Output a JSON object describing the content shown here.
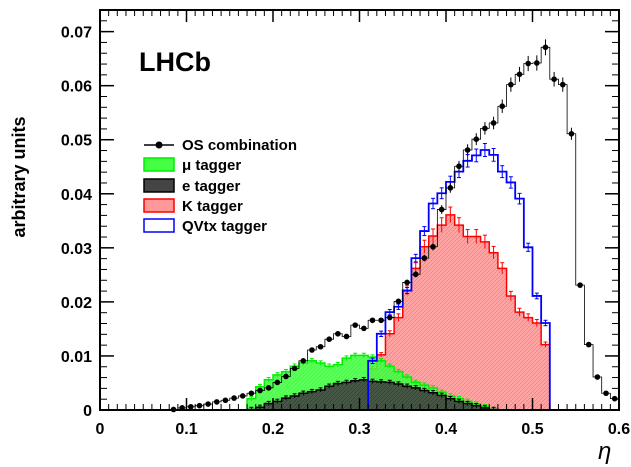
{
  "chart_data": {
    "type": "histogram",
    "experiment_label": "LHCb",
    "xlabel": "η",
    "ylabel": "arbitrary units",
    "xlim": [
      0,
      0.6
    ],
    "ylim": [
      0,
      0.074
    ],
    "bin_width": 0.01,
    "x_ticks": [
      0,
      0.1,
      0.2,
      0.3,
      0.4,
      0.5,
      0.6
    ],
    "x_tick_labels": [
      "0",
      "0.1",
      "0.2",
      "0.3",
      "0.4",
      "0.5",
      "0.6"
    ],
    "y_ticks": [
      0,
      0.01,
      0.02,
      0.03,
      0.04,
      0.05,
      0.06,
      0.07
    ],
    "y_tick_labels": [
      "0",
      "0.01",
      "0.02",
      "0.03",
      "0.04",
      "0.05",
      "0.06",
      "0.07"
    ],
    "legend_position": "left",
    "series": [
      {
        "name": "μ tagger",
        "style": "hist-filled",
        "color": "#00ee00",
        "fill": "#44ff44",
        "x_start": 0.17,
        "values": [
          0.0021,
          0.0043,
          0.0056,
          0.0065,
          0.0071,
          0.0081,
          0.0087,
          0.0091,
          0.0087,
          0.0081,
          0.0084,
          0.0096,
          0.0101,
          0.0101,
          0.0098,
          0.0091,
          0.0081,
          0.0071,
          0.0061,
          0.0051,
          0.0046,
          0.0041,
          0.0033,
          0.0026,
          0.0021,
          0.0016,
          0.0011,
          0.0006,
          0.0001
        ]
      },
      {
        "name": "e tagger",
        "style": "hist-filled",
        "color": "#000000",
        "fill": "#444444",
        "x_start": 0.17,
        "values": [
          0.0001,
          0.0005,
          0.0012,
          0.0016,
          0.0022,
          0.0026,
          0.0031,
          0.0034,
          0.0037,
          0.0044,
          0.0049,
          0.0051,
          0.0054,
          0.0056,
          0.0053,
          0.0052,
          0.0051,
          0.0048,
          0.0044,
          0.0041,
          0.0036,
          0.0032,
          0.0027,
          0.0021,
          0.0016,
          0.0012,
          0.0008,
          0.0004,
          0.0001
        ]
      },
      {
        "name": "K tagger",
        "style": "hist-filled",
        "color": "#ff0000",
        "fill": "#ff9999",
        "x_start": 0.31,
        "values": [
          0.0076,
          0.0102,
          0.0141,
          0.0171,
          0.0221,
          0.0262,
          0.0302,
          0.0322,
          0.0342,
          0.0361,
          0.0342,
          0.0321,
          0.0321,
          0.0311,
          0.0291,
          0.0262,
          0.0211,
          0.0181,
          0.0171,
          0.0161,
          0.0121
        ]
      },
      {
        "name": "QVtx tagger",
        "style": "hist-outline",
        "color": "#0000ff",
        "x_start": 0.31,
        "values": [
          0.0091,
          0.0141,
          0.0181,
          0.0191,
          0.0221,
          0.0281,
          0.0331,
          0.0382,
          0.0401,
          0.0422,
          0.0441,
          0.0461,
          0.0471,
          0.0481,
          0.0472,
          0.0441,
          0.0421,
          0.0391,
          0.0301,
          0.0211,
          0.0161
        ]
      },
      {
        "name": "OS combination",
        "style": "points-hist",
        "color": "#000000",
        "x_start": 0.08,
        "values": [
          0.0001,
          0.0004,
          0.0006,
          0.0008,
          0.0011,
          0.0015,
          0.0018,
          0.0022,
          0.0026,
          0.0031,
          0.0036,
          0.0041,
          0.0051,
          0.0062,
          0.0077,
          0.0091,
          0.0111,
          0.0117,
          0.0131,
          0.0141,
          0.0136,
          0.0157,
          0.0151,
          0.0166,
          0.0166,
          0.0171,
          0.0201,
          0.0236,
          0.0251,
          0.0281,
          0.0302,
          0.0371,
          0.0411,
          0.0451,
          0.0481,
          0.0501,
          0.0521,
          0.0531,
          0.0562,
          0.0602,
          0.0621,
          0.0641,
          0.0642,
          0.0671,
          0.0612,
          0.0602,
          0.0511,
          0.0231,
          0.0121,
          0.0061,
          0.0031,
          0.0021
        ]
      }
    ],
    "legend_order": [
      "OS combination",
      "μ tagger",
      "e tagger",
      "K tagger",
      "QVtx tagger"
    ]
  }
}
